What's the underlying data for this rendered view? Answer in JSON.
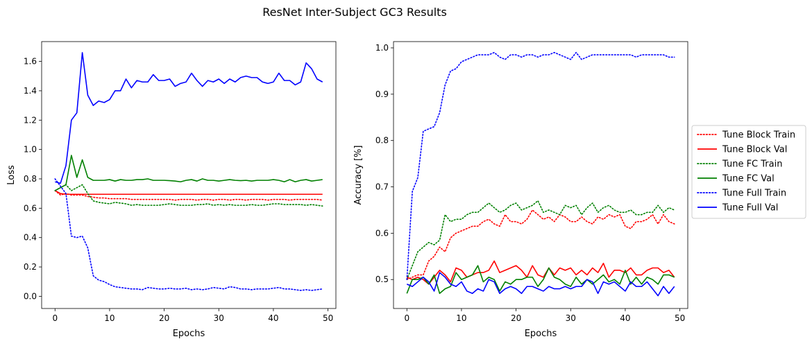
{
  "figure": {
    "title": "ResNet Inter-Subject GC3 Results"
  },
  "chart_data": [
    {
      "type": "line",
      "xlabel": "Epochs",
      "ylabel": "Loss",
      "xlim": [
        -2.45,
        51.45
      ],
      "ylim": [
        -0.083,
        1.735
      ],
      "xticks": [
        0,
        10,
        20,
        30,
        40,
        50
      ],
      "yticks": [
        0.0,
        0.2,
        0.4,
        0.6,
        0.8,
        1.0,
        1.2,
        1.4,
        1.6
      ],
      "x": [
        0,
        1,
        2,
        3,
        4,
        5,
        6,
        7,
        8,
        9,
        10,
        11,
        12,
        13,
        14,
        15,
        16,
        17,
        18,
        19,
        20,
        21,
        22,
        23,
        24,
        25,
        26,
        27,
        28,
        29,
        30,
        31,
        32,
        33,
        34,
        35,
        36,
        37,
        38,
        39,
        40,
        41,
        42,
        43,
        44,
        45,
        46,
        47,
        48,
        49
      ],
      "series": [
        {
          "name": "Tune Block Train",
          "color": "#ff0000",
          "style": "dotted",
          "values": [
            0.72,
            0.69,
            0.7,
            0.69,
            0.69,
            0.69,
            0.68,
            0.675,
            0.67,
            0.67,
            0.665,
            0.665,
            0.665,
            0.665,
            0.66,
            0.66,
            0.66,
            0.66,
            0.66,
            0.66,
            0.66,
            0.66,
            0.655,
            0.66,
            0.66,
            0.66,
            0.655,
            0.66,
            0.66,
            0.655,
            0.66,
            0.66,
            0.655,
            0.66,
            0.66,
            0.655,
            0.66,
            0.66,
            0.66,
            0.655,
            0.66,
            0.66,
            0.66,
            0.655,
            0.66,
            0.66,
            0.66,
            0.66,
            0.66,
            0.655
          ]
        },
        {
          "name": "Tune Block Val",
          "color": "#ff0000",
          "style": "solid",
          "values": [
            0.72,
            0.7,
            0.695,
            0.695,
            0.695,
            0.695,
            0.695,
            0.695,
            0.695,
            0.695,
            0.695,
            0.695,
            0.695,
            0.695,
            0.695,
            0.695,
            0.695,
            0.695,
            0.695,
            0.695,
            0.695,
            0.695,
            0.695,
            0.695,
            0.695,
            0.695,
            0.695,
            0.695,
            0.695,
            0.695,
            0.695,
            0.695,
            0.695,
            0.695,
            0.695,
            0.695,
            0.695,
            0.695,
            0.695,
            0.695,
            0.695,
            0.695,
            0.695,
            0.695,
            0.695,
            0.695,
            0.695,
            0.695,
            0.695,
            0.695
          ]
        },
        {
          "name": "Tune FC Train",
          "color": "#008000",
          "style": "dotted",
          "values": [
            0.72,
            0.74,
            0.76,
            0.72,
            0.74,
            0.76,
            0.7,
            0.65,
            0.64,
            0.635,
            0.63,
            0.64,
            0.635,
            0.63,
            0.62,
            0.625,
            0.62,
            0.62,
            0.62,
            0.62,
            0.625,
            0.63,
            0.625,
            0.62,
            0.62,
            0.62,
            0.625,
            0.625,
            0.63,
            0.62,
            0.625,
            0.62,
            0.625,
            0.62,
            0.62,
            0.62,
            0.625,
            0.62,
            0.62,
            0.625,
            0.63,
            0.63,
            0.625,
            0.625,
            0.625,
            0.625,
            0.62,
            0.625,
            0.62,
            0.615
          ]
        },
        {
          "name": "Tune FC Val",
          "color": "#008000",
          "style": "solid",
          "values": [
            0.72,
            0.74,
            0.76,
            0.96,
            0.81,
            0.93,
            0.81,
            0.79,
            0.79,
            0.79,
            0.795,
            0.785,
            0.795,
            0.79,
            0.79,
            0.795,
            0.795,
            0.8,
            0.79,
            0.79,
            0.79,
            0.788,
            0.785,
            0.78,
            0.79,
            0.795,
            0.785,
            0.8,
            0.79,
            0.79,
            0.785,
            0.79,
            0.795,
            0.79,
            0.788,
            0.79,
            0.785,
            0.79,
            0.79,
            0.79,
            0.795,
            0.79,
            0.78,
            0.795,
            0.78,
            0.79,
            0.795,
            0.785,
            0.79,
            0.795
          ]
        },
        {
          "name": "Tune Full Train",
          "color": "#0000ff",
          "style": "dotted",
          "values": [
            0.8,
            0.75,
            0.7,
            0.41,
            0.4,
            0.41,
            0.33,
            0.14,
            0.11,
            0.1,
            0.08,
            0.065,
            0.06,
            0.055,
            0.05,
            0.05,
            0.045,
            0.06,
            0.055,
            0.05,
            0.05,
            0.055,
            0.05,
            0.05,
            0.055,
            0.045,
            0.05,
            0.045,
            0.05,
            0.06,
            0.055,
            0.05,
            0.065,
            0.06,
            0.05,
            0.05,
            0.045,
            0.05,
            0.05,
            0.05,
            0.055,
            0.06,
            0.05,
            0.05,
            0.045,
            0.04,
            0.045,
            0.04,
            0.045,
            0.05
          ]
        },
        {
          "name": "Tune Full Val",
          "color": "#0000ff",
          "style": "solid",
          "values": [
            0.78,
            0.77,
            0.89,
            1.2,
            1.25,
            1.66,
            1.37,
            1.3,
            1.33,
            1.32,
            1.34,
            1.4,
            1.4,
            1.48,
            1.42,
            1.47,
            1.46,
            1.46,
            1.51,
            1.47,
            1.47,
            1.48,
            1.43,
            1.45,
            1.46,
            1.52,
            1.47,
            1.43,
            1.47,
            1.46,
            1.48,
            1.45,
            1.48,
            1.46,
            1.49,
            1.5,
            1.49,
            1.49,
            1.46,
            1.45,
            1.46,
            1.52,
            1.47,
            1.47,
            1.44,
            1.46,
            1.59,
            1.55,
            1.48,
            1.46
          ]
        }
      ]
    },
    {
      "type": "line",
      "xlabel": "Epochs",
      "ylabel": "Accuracy [%]",
      "xlim": [
        -2.45,
        51.45
      ],
      "ylim": [
        0.4375,
        1.0135
      ],
      "xticks": [
        0,
        10,
        20,
        30,
        40,
        50
      ],
      "yticks": [
        0.5,
        0.6,
        0.7,
        0.8,
        0.9,
        1.0
      ],
      "x": [
        0,
        1,
        2,
        3,
        4,
        5,
        6,
        7,
        8,
        9,
        10,
        11,
        12,
        13,
        14,
        15,
        16,
        17,
        18,
        19,
        20,
        21,
        22,
        23,
        24,
        25,
        26,
        27,
        28,
        29,
        30,
        31,
        32,
        33,
        34,
        35,
        36,
        37,
        38,
        39,
        40,
        41,
        42,
        43,
        44,
        45,
        46,
        47,
        48,
        49
      ],
      "legend_position": "right, outside",
      "series": [
        {
          "name": "Tune Block Train",
          "color": "#ff0000",
          "style": "dotted",
          "values": [
            0.5,
            0.505,
            0.51,
            0.51,
            0.54,
            0.55,
            0.57,
            0.56,
            0.59,
            0.6,
            0.605,
            0.61,
            0.615,
            0.615,
            0.625,
            0.63,
            0.62,
            0.615,
            0.64,
            0.625,
            0.625,
            0.62,
            0.63,
            0.65,
            0.64,
            0.63,
            0.635,
            0.625,
            0.64,
            0.635,
            0.625,
            0.625,
            0.635,
            0.625,
            0.62,
            0.635,
            0.63,
            0.64,
            0.635,
            0.64,
            0.615,
            0.61,
            0.625,
            0.625,
            0.63,
            0.64,
            0.62,
            0.64,
            0.625,
            0.62
          ]
        },
        {
          "name": "Tune Block Val",
          "color": "#ff0000",
          "style": "solid",
          "values": [
            0.505,
            0.5,
            0.505,
            0.5,
            0.49,
            0.505,
            0.52,
            0.51,
            0.495,
            0.525,
            0.52,
            0.505,
            0.51,
            0.515,
            0.515,
            0.52,
            0.54,
            0.515,
            0.52,
            0.525,
            0.53,
            0.52,
            0.505,
            0.53,
            0.51,
            0.505,
            0.525,
            0.51,
            0.525,
            0.52,
            0.525,
            0.51,
            0.52,
            0.51,
            0.525,
            0.515,
            0.535,
            0.505,
            0.52,
            0.52,
            0.515,
            0.525,
            0.51,
            0.51,
            0.52,
            0.525,
            0.525,
            0.515,
            0.52,
            0.505
          ]
        },
        {
          "name": "Tune FC Train",
          "color": "#008000",
          "style": "dotted",
          "values": [
            0.5,
            0.53,
            0.56,
            0.57,
            0.58,
            0.575,
            0.585,
            0.64,
            0.625,
            0.63,
            0.63,
            0.64,
            0.645,
            0.645,
            0.655,
            0.665,
            0.655,
            0.645,
            0.65,
            0.66,
            0.665,
            0.65,
            0.655,
            0.66,
            0.67,
            0.645,
            0.65,
            0.645,
            0.64,
            0.66,
            0.655,
            0.66,
            0.64,
            0.655,
            0.665,
            0.645,
            0.655,
            0.66,
            0.65,
            0.645,
            0.645,
            0.65,
            0.64,
            0.64,
            0.645,
            0.645,
            0.66,
            0.645,
            0.655,
            0.65
          ]
        },
        {
          "name": "Tune FC Val",
          "color": "#008000",
          "style": "solid",
          "values": [
            0.47,
            0.5,
            0.5,
            0.505,
            0.49,
            0.51,
            0.47,
            0.48,
            0.485,
            0.515,
            0.5,
            0.505,
            0.51,
            0.53,
            0.495,
            0.505,
            0.5,
            0.475,
            0.495,
            0.49,
            0.5,
            0.5,
            0.505,
            0.505,
            0.485,
            0.5,
            0.525,
            0.505,
            0.5,
            0.49,
            0.485,
            0.505,
            0.49,
            0.5,
            0.49,
            0.5,
            0.51,
            0.495,
            0.5,
            0.49,
            0.52,
            0.49,
            0.505,
            0.49,
            0.505,
            0.5,
            0.49,
            0.51,
            0.51,
            0.505
          ]
        },
        {
          "name": "Tune Full Train",
          "color": "#0000ff",
          "style": "dotted",
          "values": [
            0.5,
            0.69,
            0.72,
            0.82,
            0.825,
            0.83,
            0.86,
            0.92,
            0.95,
            0.955,
            0.97,
            0.975,
            0.98,
            0.985,
            0.985,
            0.985,
            0.99,
            0.98,
            0.975,
            0.985,
            0.985,
            0.98,
            0.985,
            0.985,
            0.98,
            0.985,
            0.985,
            0.99,
            0.985,
            0.98,
            0.975,
            0.99,
            0.975,
            0.98,
            0.985,
            0.985,
            0.985,
            0.985,
            0.985,
            0.985,
            0.985,
            0.985,
            0.98,
            0.985,
            0.985,
            0.985,
            0.985,
            0.985,
            0.98,
            0.98
          ]
        },
        {
          "name": "Tune Full Val",
          "color": "#0000ff",
          "style": "solid",
          "values": [
            0.49,
            0.485,
            0.495,
            0.505,
            0.495,
            0.475,
            0.515,
            0.505,
            0.49,
            0.485,
            0.495,
            0.475,
            0.47,
            0.48,
            0.475,
            0.5,
            0.495,
            0.47,
            0.48,
            0.485,
            0.48,
            0.47,
            0.485,
            0.485,
            0.48,
            0.475,
            0.485,
            0.48,
            0.48,
            0.485,
            0.48,
            0.485,
            0.485,
            0.5,
            0.495,
            0.47,
            0.495,
            0.49,
            0.495,
            0.485,
            0.475,
            0.495,
            0.485,
            0.485,
            0.495,
            0.48,
            0.465,
            0.485,
            0.47,
            0.485
          ]
        }
      ]
    }
  ]
}
